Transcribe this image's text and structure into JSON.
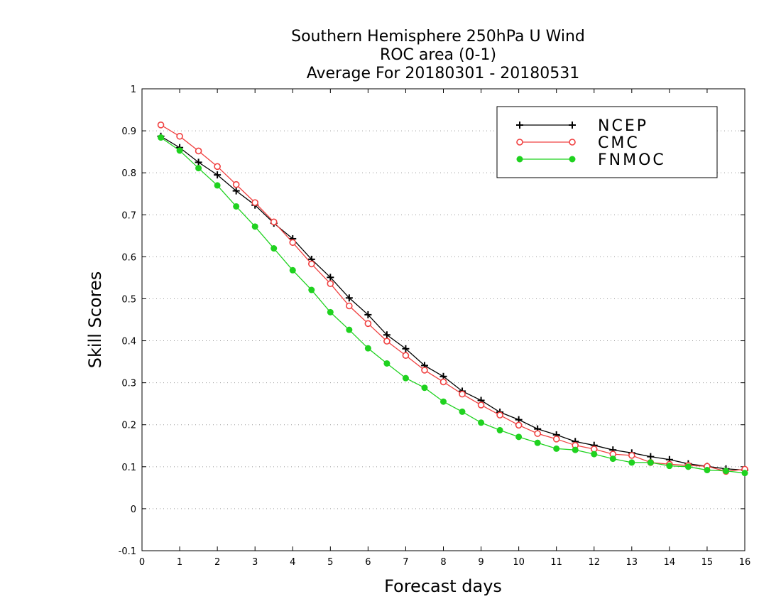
{
  "chart_data": {
    "type": "line",
    "title": [
      "Southern Hemisphere 250hPa U Wind",
      "ROC area (0-1)",
      "Average For 20180301 - 20180531"
    ],
    "xlabel": "Forecast days",
    "ylabel": "Skill Scores",
    "xlim": [
      0,
      16
    ],
    "ylim": [
      -0.1,
      1
    ],
    "xticks": [
      0,
      1,
      2,
      3,
      4,
      5,
      6,
      7,
      8,
      9,
      10,
      11,
      12,
      13,
      14,
      15,
      16
    ],
    "yticks": [
      -0.1,
      0,
      0.1,
      0.2,
      0.3,
      0.4,
      0.5,
      0.6,
      0.7,
      0.8,
      0.9,
      1
    ],
    "ytick_labels": [
      "-0.1",
      "0",
      "0.1",
      "0.2",
      "0.3",
      "0.4",
      "0.5",
      "0.6",
      "0.7",
      "0.8",
      "0.9",
      "1"
    ],
    "grid": "horizontal dotted",
    "legend_position": "top-right",
    "x": [
      0.5,
      1,
      1.5,
      2,
      2.5,
      3,
      3.5,
      4,
      4.5,
      5,
      5.5,
      6,
      6.5,
      7,
      7.5,
      8,
      8.5,
      9,
      9.5,
      10,
      10.5,
      11,
      11.5,
      12,
      12.5,
      13,
      13.5,
      14,
      14.5,
      15,
      15.5,
      16
    ],
    "series": [
      {
        "name": "NCEP",
        "color": "#000000",
        "marker": "plus",
        "values": [
          0.887,
          0.86,
          0.825,
          0.795,
          0.757,
          0.723,
          0.68,
          0.643,
          0.594,
          0.551,
          0.502,
          0.462,
          0.414,
          0.381,
          0.341,
          0.315,
          0.28,
          0.258,
          0.23,
          0.212,
          0.19,
          0.176,
          0.16,
          0.151,
          0.14,
          0.133,
          0.124,
          0.117,
          0.107,
          0.101,
          0.095,
          0.092
        ]
      },
      {
        "name": "CMC",
        "color": "#f04040",
        "marker": "open-circle",
        "values": [
          0.914,
          0.887,
          0.852,
          0.815,
          0.772,
          0.729,
          0.683,
          0.634,
          0.583,
          0.536,
          0.483,
          0.441,
          0.399,
          0.365,
          0.33,
          0.302,
          0.273,
          0.247,
          0.223,
          0.199,
          0.179,
          0.166,
          0.151,
          0.142,
          0.13,
          0.127,
          0.11,
          0.106,
          0.103,
          0.101,
          0.089,
          0.094
        ]
      },
      {
        "name": "FNMOC",
        "color": "#1fd21f",
        "marker": "filled-circle",
        "values": [
          0.884,
          0.853,
          0.811,
          0.77,
          0.72,
          0.672,
          0.62,
          0.568,
          0.521,
          0.468,
          0.426,
          0.382,
          0.346,
          0.311,
          0.288,
          0.255,
          0.231,
          0.205,
          0.187,
          0.171,
          0.157,
          0.143,
          0.14,
          0.13,
          0.119,
          0.11,
          0.11,
          0.102,
          0.1,
          0.092,
          0.09,
          0.085
        ]
      }
    ]
  }
}
